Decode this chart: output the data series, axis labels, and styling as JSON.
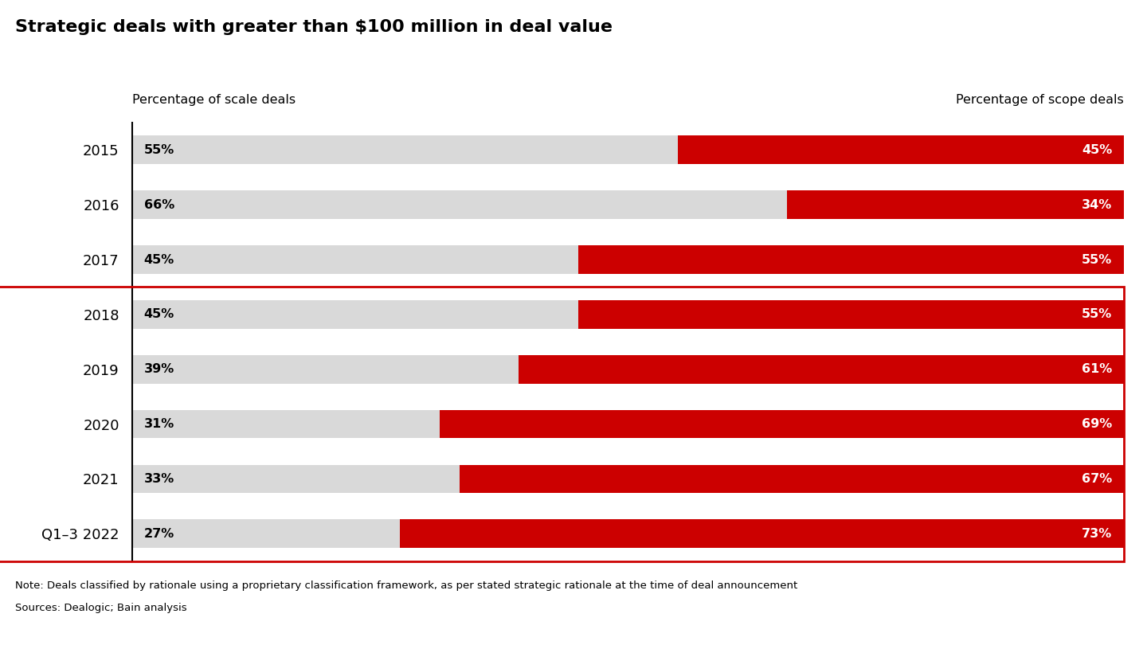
{
  "title": "Strategic deals with greater than $100 million in deal value",
  "years": [
    "2015",
    "2016",
    "2017",
    "2018",
    "2019",
    "2020",
    "2021",
    "Q1–3 2022"
  ],
  "scale_pct": [
    55,
    66,
    45,
    45,
    39,
    31,
    33,
    27
  ],
  "scope_pct": [
    45,
    34,
    55,
    55,
    61,
    69,
    67,
    73
  ],
  "scale_color": "#d9d9d9",
  "scope_color": "#cc0000",
  "scale_label_color": "#000000",
  "scope_label_color": "#ffffff",
  "highlight_years": [
    "2018",
    "2019",
    "2020",
    "2021",
    "Q1–3 2022"
  ],
  "highlight_box_color": "#cc0000",
  "left_header": "Percentage of scale deals",
  "right_header": "Percentage of scope deals",
  "note_line1": "Note: Deals classified by rationale using a proprietary classification framework, as per stated strategic rationale at the time of deal announcement",
  "note_line2": "Sources: Dealogic; Bain analysis",
  "background_color": "#ffffff",
  "title_fontsize": 16,
  "header_fontsize": 11.5,
  "bar_label_fontsize": 11.5,
  "note_fontsize": 9.5,
  "year_fontsize": 13,
  "bar_height": 0.52,
  "bar_gap": 1.0
}
